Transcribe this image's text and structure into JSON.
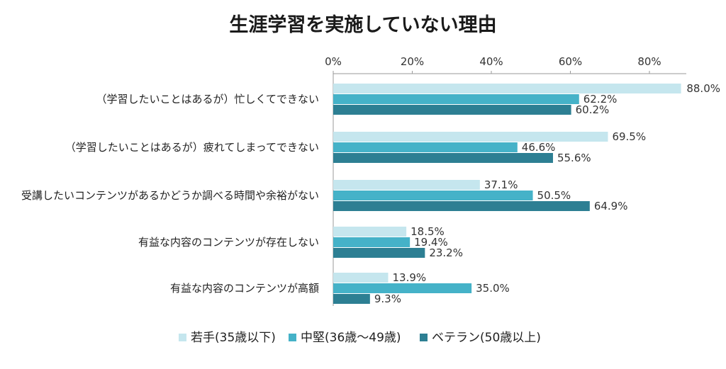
{
  "chart_data": {
    "type": "bar",
    "orientation": "horizontal",
    "title": "生涯学習を実施していない理由",
    "xlim": [
      0,
      88
    ],
    "ticks": [
      "0%",
      "20%",
      "40%",
      "60%",
      "80%"
    ],
    "tick_values": [
      0,
      20,
      40,
      60,
      80
    ],
    "categories": [
      "（学習したいことはあるが）忙しくてできない",
      "（学習したいことはあるが）疲れてしまってできない",
      "受講したいコンテンツがあるかどうか調べる時間や余裕がない",
      "有益な内容のコンテンツが存在しない",
      "有益な内容のコンテンツが高額"
    ],
    "series": [
      {
        "name": "若手(35歳以下)",
        "color": "#c5e6ee",
        "values": [
          88.0,
          69.5,
          37.1,
          18.5,
          13.9
        ],
        "labels": [
          "88.0%",
          "69.5%",
          "37.1%",
          "18.5%",
          "13.9%"
        ]
      },
      {
        "name": "中堅(36歳～49歳)",
        "color": "#45b2c8",
        "values": [
          62.2,
          46.6,
          50.5,
          19.4,
          35.0
        ],
        "labels": [
          "62.2%",
          "46.6%",
          "50.5%",
          "19.4%",
          "35.0%"
        ]
      },
      {
        "name": "ベテラン(50歳以上)",
        "color": "#2d7f93",
        "values": [
          60.2,
          55.6,
          64.9,
          23.2,
          9.3
        ],
        "labels": [
          "60.2%",
          "55.6%",
          "64.9%",
          "23.2%",
          "9.3%"
        ]
      }
    ],
    "legend": "bottom",
    "grid": false
  }
}
